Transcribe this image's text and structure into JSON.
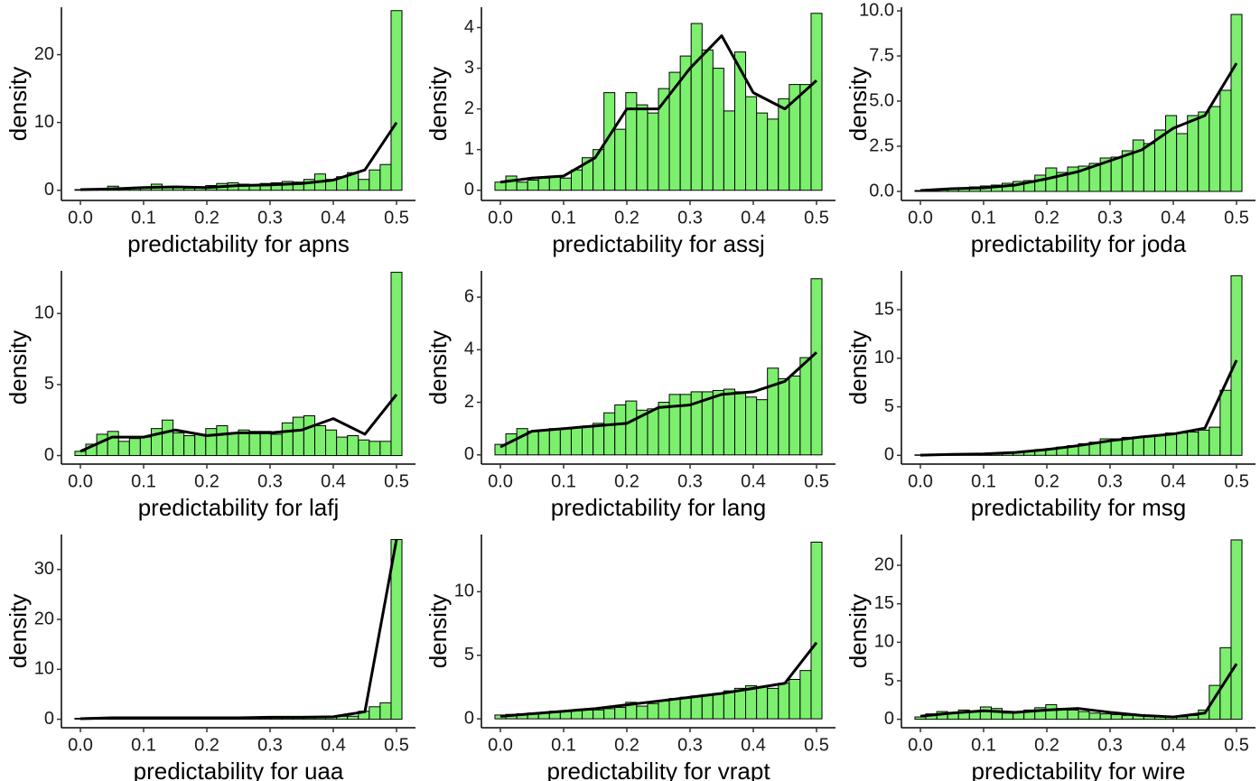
{
  "chart_data": [
    {
      "type": "histogram",
      "xlabel": "predictability for apns",
      "ylabel": "density",
      "color": "#7def6f",
      "line_color": "#000000",
      "bins": [
        -0.0086,
        0.0086,
        0.0259,
        0.0431,
        0.0603,
        0.0776,
        0.0948,
        0.1121,
        0.1293,
        0.1466,
        0.1638,
        0.181,
        0.1983,
        0.2155,
        0.2328,
        0.25,
        0.2672,
        0.2845,
        0.3017,
        0.319,
        0.3362,
        0.3534,
        0.3707,
        0.3879,
        0.4052,
        0.4224,
        0.4397,
        0.4569,
        0.4741,
        0.4914,
        0.5086
      ],
      "values": [
        0.1,
        0.1,
        0.2,
        0.6,
        0.3,
        0.4,
        0.5,
        0.9,
        0.5,
        0.4,
        0.3,
        0.4,
        0.7,
        1.0,
        1.1,
        0.9,
        0.8,
        1.0,
        1.1,
        1.3,
        1.2,
        1.6,
        2.4,
        1.6,
        2.0,
        2.6,
        1.6,
        3.0,
        3.8,
        26.5
      ],
      "curve": {
        "x": [
          0,
          0.05,
          0.1,
          0.15,
          0.2,
          0.25,
          0.3,
          0.35,
          0.4,
          0.45,
          0.5
        ],
        "y": [
          0.1,
          0.2,
          0.4,
          0.5,
          0.4,
          0.7,
          0.8,
          1.0,
          1.5,
          3.0,
          10.0
        ]
      },
      "xlim": [
        -0.03,
        0.53
      ],
      "ylim": [
        -1.5,
        27
      ],
      "xticks": [
        {
          "value": 0,
          "label": "0.0"
        },
        0.1,
        0.2,
        0.3,
        0.4,
        0.5
      ],
      "yticks": [
        0,
        10,
        20
      ]
    },
    {
      "type": "histogram",
      "xlabel": "predictability for assj",
      "ylabel": "density",
      "color": "#7def6f",
      "line_color": "#000000",
      "bins": [
        -0.0086,
        0.0086,
        0.0259,
        0.0431,
        0.0603,
        0.0776,
        0.0948,
        0.1121,
        0.1293,
        0.1466,
        0.1638,
        0.181,
        0.1983,
        0.2155,
        0.2328,
        0.25,
        0.2672,
        0.2845,
        0.3017,
        0.319,
        0.3362,
        0.3534,
        0.3707,
        0.3879,
        0.4052,
        0.4224,
        0.4397,
        0.4569,
        0.4741,
        0.4914,
        0.5086
      ],
      "values": [
        0.2,
        0.35,
        0.2,
        0.25,
        0.3,
        0.35,
        0.3,
        0.5,
        0.8,
        1.0,
        2.4,
        1.5,
        2.4,
        2.1,
        1.9,
        2.5,
        2.9,
        3.3,
        4.1,
        3.45,
        3.0,
        1.95,
        3.4,
        2.3,
        1.9,
        1.75,
        2.25,
        2.6,
        2.6,
        4.35
      ],
      "curve": {
        "x": [
          0,
          0.05,
          0.1,
          0.15,
          0.2,
          0.25,
          0.3,
          0.35,
          0.4,
          0.45,
          0.5
        ],
        "y": [
          0.2,
          0.3,
          0.35,
          0.8,
          2.0,
          2.0,
          3.0,
          3.8,
          2.4,
          2.0,
          2.7
        ]
      },
      "xlim": [
        -0.03,
        0.53
      ],
      "ylim": [
        -0.25,
        4.5
      ],
      "xticks": [
        {
          "value": 0,
          "label": "0.0"
        },
        0.1,
        0.2,
        0.3,
        0.4,
        0.5
      ],
      "yticks": [
        0,
        1,
        2,
        3,
        4
      ]
    },
    {
      "type": "histogram",
      "xlabel": "predictability for joda",
      "ylabel": "density",
      "color": "#7def6f",
      "line_color": "#000000",
      "bins": [
        -0.0086,
        0.0086,
        0.0259,
        0.0431,
        0.0603,
        0.0776,
        0.0948,
        0.1121,
        0.1293,
        0.1466,
        0.1638,
        0.181,
        0.1983,
        0.2155,
        0.2328,
        0.25,
        0.2672,
        0.2845,
        0.3017,
        0.319,
        0.3362,
        0.3534,
        0.3707,
        0.3879,
        0.4052,
        0.4224,
        0.4397,
        0.4569,
        0.4741,
        0.4914,
        0.5086
      ],
      "values": [
        0.05,
        0.1,
        0.1,
        0.15,
        0.2,
        0.25,
        0.3,
        0.35,
        0.45,
        0.55,
        0.6,
        0.9,
        1.3,
        1.05,
        1.35,
        1.4,
        1.55,
        1.85,
        1.9,
        2.25,
        2.85,
        2.65,
        3.4,
        4.2,
        3.2,
        4.2,
        4.4,
        4.7,
        5.6,
        9.8
      ],
      "curve": {
        "x": [
          0,
          0.05,
          0.1,
          0.15,
          0.2,
          0.25,
          0.3,
          0.35,
          0.4,
          0.45,
          0.5
        ],
        "y": [
          0.05,
          0.15,
          0.2,
          0.35,
          0.7,
          1.1,
          1.7,
          2.3,
          3.5,
          4.2,
          7.1
        ]
      },
      "xlim": [
        -0.03,
        0.53
      ],
      "ylim": [
        -0.5,
        10.2
      ],
      "xticks": [
        {
          "value": 0,
          "label": "0.0"
        },
        0.1,
        0.2,
        0.3,
        0.4,
        0.5
      ],
      "yticks": [
        {
          "value": 0,
          "label": "0.0"
        },
        2.5,
        {
          "value": 5,
          "label": "5.0"
        },
        7.5,
        {
          "value": 10,
          "label": "10.0"
        }
      ]
    },
    {
      "type": "histogram",
      "xlabel": "predictability for lafj",
      "ylabel": "density",
      "color": "#7def6f",
      "line_color": "#000000",
      "bins": [
        -0.0086,
        0.0086,
        0.0259,
        0.0431,
        0.0603,
        0.0776,
        0.0948,
        0.1121,
        0.1293,
        0.1466,
        0.1638,
        0.181,
        0.1983,
        0.2155,
        0.2328,
        0.25,
        0.2672,
        0.2845,
        0.3017,
        0.319,
        0.3362,
        0.3534,
        0.3707,
        0.3879,
        0.4052,
        0.4224,
        0.4397,
        0.4569,
        0.4741,
        0.4914,
        0.5086
      ],
      "values": [
        0.3,
        0.8,
        1.5,
        1.7,
        1.0,
        1.2,
        1.3,
        1.9,
        2.5,
        1.6,
        1.4,
        1.5,
        1.9,
        2.1,
        1.6,
        1.8,
        1.7,
        1.7,
        1.5,
        2.3,
        2.7,
        2.8,
        2.1,
        1.8,
        1.3,
        1.4,
        1.1,
        1.0,
        1.0,
        12.9
      ],
      "curve": {
        "x": [
          0,
          0.05,
          0.1,
          0.15,
          0.2,
          0.25,
          0.3,
          0.35,
          0.4,
          0.45,
          0.5
        ],
        "y": [
          0.3,
          1.3,
          1.3,
          1.8,
          1.4,
          1.6,
          1.6,
          1.8,
          2.6,
          1.5,
          4.3
        ]
      },
      "xlim": [
        -0.03,
        0.53
      ],
      "ylim": [
        -0.6,
        13
      ],
      "xticks": [
        {
          "value": 0,
          "label": "0.0"
        },
        0.1,
        0.2,
        0.3,
        0.4,
        0.5
      ],
      "yticks": [
        0,
        5,
        10
      ]
    },
    {
      "type": "histogram",
      "xlabel": "predictability for lang",
      "ylabel": "density",
      "color": "#7def6f",
      "line_color": "#000000",
      "bins": [
        -0.0086,
        0.0086,
        0.0259,
        0.0431,
        0.0603,
        0.0776,
        0.0948,
        0.1121,
        0.1293,
        0.1466,
        0.1638,
        0.181,
        0.1983,
        0.2155,
        0.2328,
        0.25,
        0.2672,
        0.2845,
        0.3017,
        0.319,
        0.3362,
        0.3534,
        0.3707,
        0.3879,
        0.4052,
        0.4224,
        0.4397,
        0.4569,
        0.4741,
        0.4914,
        0.5086
      ],
      "values": [
        0.4,
        0.8,
        1.0,
        0.9,
        0.95,
        1.0,
        1.0,
        1.05,
        1.1,
        1.2,
        1.6,
        1.9,
        2.05,
        1.7,
        1.75,
        2.0,
        2.3,
        2.3,
        2.4,
        2.4,
        2.45,
        2.5,
        2.4,
        2.2,
        2.1,
        3.3,
        2.9,
        3.0,
        3.7,
        6.7
      ],
      "curve": {
        "x": [
          0,
          0.05,
          0.1,
          0.15,
          0.2,
          0.25,
          0.3,
          0.35,
          0.4,
          0.45,
          0.5
        ],
        "y": [
          0.3,
          0.9,
          1.0,
          1.1,
          1.2,
          1.8,
          1.9,
          2.3,
          2.4,
          2.8,
          3.9
        ]
      },
      "xlim": [
        -0.03,
        0.53
      ],
      "ylim": [
        -0.35,
        7
      ],
      "xticks": [
        {
          "value": 0,
          "label": "0.0"
        },
        0.1,
        0.2,
        0.3,
        0.4,
        0.5
      ],
      "yticks": [
        0,
        2,
        4,
        6
      ]
    },
    {
      "type": "histogram",
      "xlabel": "predictability for msg",
      "ylabel": "density",
      "color": "#7def6f",
      "line_color": "#000000",
      "bins": [
        -0.0086,
        0.0086,
        0.0259,
        0.0431,
        0.0603,
        0.0776,
        0.0948,
        0.1121,
        0.1293,
        0.1466,
        0.1638,
        0.181,
        0.1983,
        0.2155,
        0.2328,
        0.25,
        0.2672,
        0.2845,
        0.3017,
        0.319,
        0.3362,
        0.3534,
        0.3707,
        0.3879,
        0.4052,
        0.4224,
        0.4397,
        0.4569,
        0.4741,
        0.4914,
        0.5086
      ],
      "values": [
        0.05,
        0.05,
        0.1,
        0.1,
        0.1,
        0.15,
        0.2,
        0.25,
        0.3,
        0.35,
        0.45,
        0.6,
        0.7,
        0.85,
        1.0,
        1.2,
        1.35,
        1.7,
        1.7,
        1.85,
        1.9,
        2.0,
        2.05,
        2.3,
        2.3,
        2.4,
        2.6,
        2.9,
        6.7,
        18.5
      ],
      "curve": {
        "x": [
          0,
          0.05,
          0.1,
          0.15,
          0.2,
          0.25,
          0.3,
          0.35,
          0.4,
          0.45,
          0.5
        ],
        "y": [
          0.02,
          0.1,
          0.15,
          0.3,
          0.6,
          1.0,
          1.5,
          1.9,
          2.2,
          2.8,
          9.8
        ]
      },
      "xlim": [
        -0.03,
        0.53
      ],
      "ylim": [
        -0.9,
        19
      ],
      "xticks": [
        {
          "value": 0,
          "label": "0.0"
        },
        0.1,
        0.2,
        0.3,
        0.4,
        0.5
      ],
      "yticks": [
        0,
        5,
        10,
        15
      ]
    },
    {
      "type": "histogram",
      "xlabel": "predictability for uaa",
      "ylabel": "density",
      "color": "#7def6f",
      "line_color": "#000000",
      "bins": [
        -0.0086,
        0.0086,
        0.0259,
        0.0431,
        0.0603,
        0.0776,
        0.0948,
        0.1121,
        0.1293,
        0.1466,
        0.1638,
        0.181,
        0.1983,
        0.2155,
        0.2328,
        0.25,
        0.2672,
        0.2845,
        0.3017,
        0.319,
        0.3362,
        0.3534,
        0.3707,
        0.3879,
        0.4052,
        0.4224,
        0.4397,
        0.4569,
        0.4741,
        0.4914,
        0.5086
      ],
      "values": [
        0.2,
        0.3,
        0.3,
        0.3,
        0.3,
        0.35,
        0.3,
        0.3,
        0.3,
        0.35,
        0.3,
        0.3,
        0.35,
        0.35,
        0.4,
        0.4,
        0.4,
        0.4,
        0.45,
        0.4,
        0.4,
        0.5,
        0.4,
        0.5,
        0.6,
        0.6,
        1.6,
        2.5,
        3.3,
        36
      ],
      "curve": {
        "x": [
          0,
          0.05,
          0.1,
          0.15,
          0.2,
          0.25,
          0.3,
          0.35,
          0.4,
          0.45,
          0.5
        ],
        "y": [
          0.1,
          0.3,
          0.3,
          0.3,
          0.3,
          0.3,
          0.4,
          0.4,
          0.5,
          1.5,
          36
        ]
      },
      "xlim": [
        -0.03,
        0.53
      ],
      "ylim": [
        -1.7,
        37
      ],
      "xticks": [
        {
          "value": 0,
          "label": "0.0"
        },
        0.1,
        0.2,
        0.3,
        0.4,
        0.5
      ],
      "yticks": [
        0,
        10,
        20,
        30
      ]
    },
    {
      "type": "histogram",
      "xlabel": "predictability for vrapt",
      "ylabel": "density",
      "color": "#7def6f",
      "line_color": "#000000",
      "bins": [
        -0.0086,
        0.0086,
        0.0259,
        0.0431,
        0.0603,
        0.0776,
        0.0948,
        0.1121,
        0.1293,
        0.1466,
        0.1638,
        0.181,
        0.1983,
        0.2155,
        0.2328,
        0.25,
        0.2672,
        0.2845,
        0.3017,
        0.319,
        0.3362,
        0.3534,
        0.3707,
        0.3879,
        0.4052,
        0.4224,
        0.4397,
        0.4569,
        0.4741,
        0.4914,
        0.5086
      ],
      "values": [
        0.3,
        0.35,
        0.4,
        0.45,
        0.5,
        0.6,
        0.65,
        0.7,
        0.7,
        0.7,
        0.8,
        0.9,
        1.3,
        1.0,
        1.2,
        1.4,
        1.6,
        1.7,
        1.8,
        1.9,
        2.0,
        2.2,
        2.4,
        2.6,
        2.5,
        2.4,
        2.8,
        3.1,
        3.8,
        13.9
      ],
      "curve": {
        "x": [
          0,
          0.05,
          0.1,
          0.15,
          0.2,
          0.25,
          0.3,
          0.35,
          0.4,
          0.45,
          0.5
        ],
        "y": [
          0.2,
          0.4,
          0.6,
          0.8,
          1.1,
          1.4,
          1.7,
          2.0,
          2.4,
          2.8,
          6.0
        ]
      },
      "xlim": [
        -0.03,
        0.53
      ],
      "ylim": [
        -0.7,
        14.5
      ],
      "xticks": [
        {
          "value": 0,
          "label": "0.0"
        },
        0.1,
        0.2,
        0.3,
        0.4,
        0.5
      ],
      "yticks": [
        0,
        5,
        10
      ]
    },
    {
      "type": "histogram",
      "xlabel": "predictability for wire",
      "ylabel": "density",
      "color": "#7def6f",
      "line_color": "#000000",
      "bins": [
        -0.0086,
        0.0086,
        0.0259,
        0.0431,
        0.0603,
        0.0776,
        0.0948,
        0.1121,
        0.1293,
        0.1466,
        0.1638,
        0.181,
        0.1983,
        0.2155,
        0.2328,
        0.25,
        0.2672,
        0.2845,
        0.3017,
        0.319,
        0.3362,
        0.3534,
        0.3707,
        0.3879,
        0.4052,
        0.4224,
        0.4397,
        0.4569,
        0.4741,
        0.4914,
        0.5086
      ],
      "values": [
        0.3,
        0.7,
        1.0,
        0.8,
        1.2,
        1.0,
        1.6,
        1.4,
        0.8,
        1.0,
        1.2,
        1.5,
        1.9,
        1.4,
        1.2,
        1.0,
        0.8,
        0.7,
        0.6,
        0.5,
        0.5,
        0.4,
        0.4,
        0.3,
        0.3,
        0.5,
        1.2,
        4.4,
        9.3,
        23.3
      ],
      "curve": {
        "x": [
          0,
          0.05,
          0.1,
          0.15,
          0.2,
          0.25,
          0.3,
          0.35,
          0.4,
          0.45,
          0.5
        ],
        "y": [
          0.4,
          0.8,
          1.1,
          0.9,
          1.2,
          1.4,
          0.9,
          0.5,
          0.3,
          0.8,
          7.2
        ]
      },
      "xlim": [
        -0.03,
        0.53
      ],
      "ylim": [
        -1.1,
        24
      ],
      "xticks": [
        {
          "value": 0,
          "label": "0.0"
        },
        0.1,
        0.2,
        0.3,
        0.4,
        0.5
      ],
      "yticks": [
        0,
        5,
        10,
        15,
        20
      ]
    }
  ]
}
